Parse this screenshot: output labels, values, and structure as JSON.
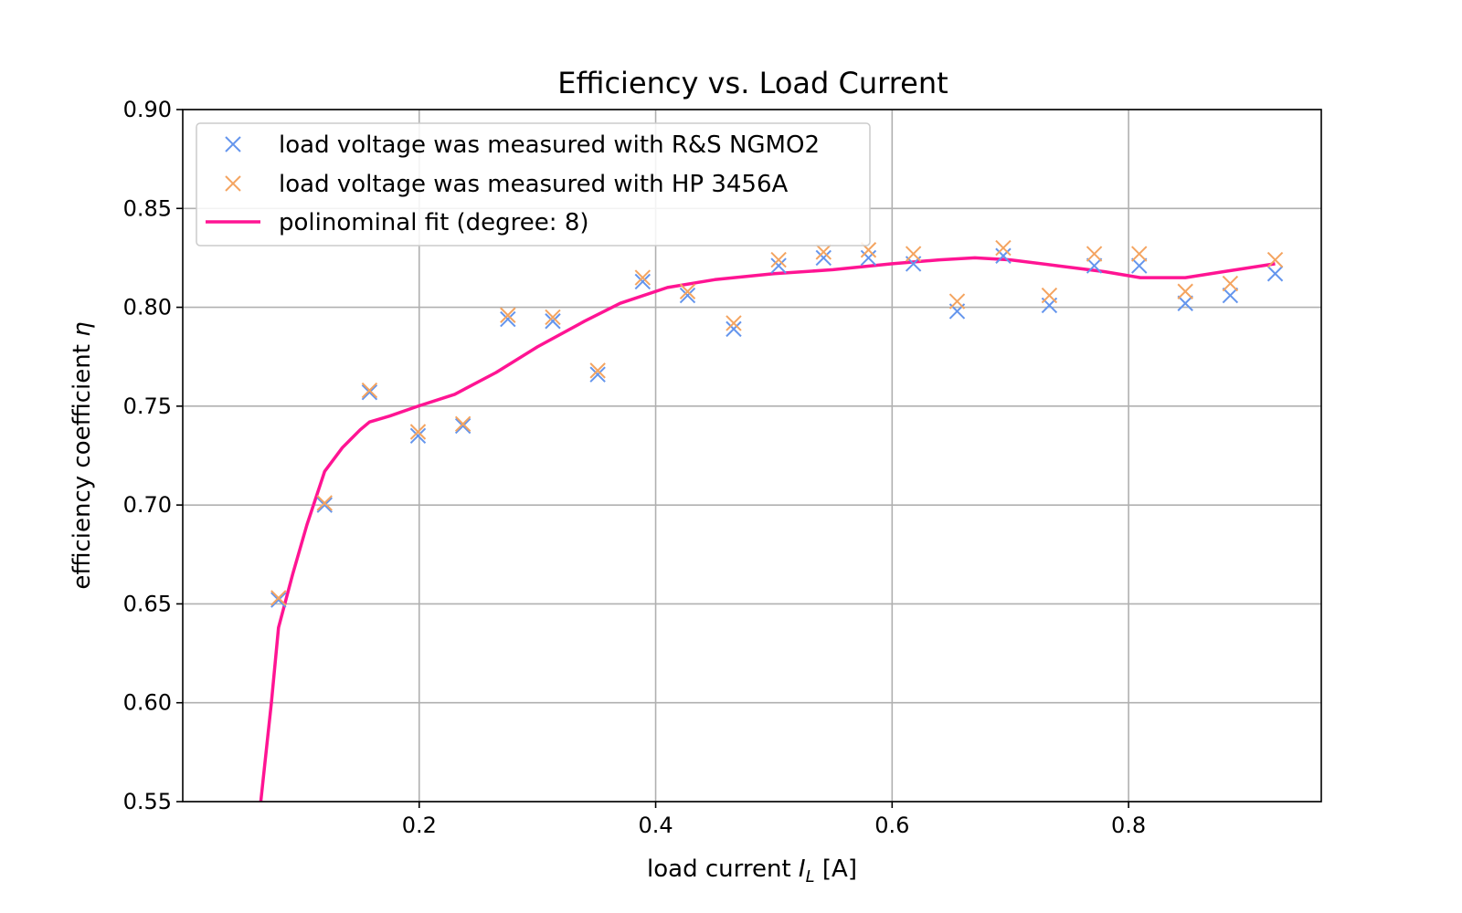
{
  "chart_data": {
    "type": "scatter",
    "title": "Efficiency vs. Load Current",
    "xlabel": {
      "prefix": "load current ",
      "var": "I",
      "sub": "L",
      "suffix": " [A]"
    },
    "ylabel": {
      "prefix": "efficiency coefficient ",
      "var": "η"
    },
    "xlim": [
      0.0,
      0.963
    ],
    "ylim": [
      0.55,
      0.9
    ],
    "xticks": [
      0.2,
      0.4,
      0.6,
      0.8
    ],
    "xtick_labels": [
      "0.2",
      "0.4",
      "0.6",
      "0.8"
    ],
    "yticks": [
      0.55,
      0.6,
      0.65,
      0.7,
      0.75,
      0.8,
      0.85,
      0.9
    ],
    "ytick_labels": [
      "0.55",
      "0.60",
      "0.65",
      "0.70",
      "0.75",
      "0.80",
      "0.85",
      "0.90"
    ],
    "grid": true,
    "legend_position": "top-left",
    "x": [
      0.081,
      0.12,
      0.158,
      0.199,
      0.237,
      0.275,
      0.313,
      0.351,
      0.389,
      0.427,
      0.466,
      0.504,
      0.542,
      0.58,
      0.618,
      0.655,
      0.694,
      0.733,
      0.771,
      0.809,
      0.848,
      0.886,
      0.924
    ],
    "series": [
      {
        "name": "load voltage was measured with R&S NGMO2",
        "kind": "scatter",
        "color": "#6495ed",
        "values": [
          0.652,
          0.7,
          0.757,
          0.735,
          0.74,
          0.794,
          0.793,
          0.766,
          0.813,
          0.806,
          0.789,
          0.821,
          0.825,
          0.825,
          0.822,
          0.798,
          0.826,
          0.801,
          0.821,
          0.821,
          0.802,
          0.806,
          0.817
        ]
      },
      {
        "name": "load voltage was measured with HP 3456A",
        "kind": "scatter",
        "color": "#f4a460",
        "values": [
          0.653,
          0.701,
          0.758,
          0.737,
          0.741,
          0.796,
          0.795,
          0.768,
          0.815,
          0.808,
          0.792,
          0.824,
          0.828,
          0.829,
          0.827,
          0.803,
          0.83,
          0.806,
          0.827,
          0.827,
          0.808,
          0.812,
          0.824
        ]
      },
      {
        "name": "polinominal fit (degree: 8)",
        "kind": "line",
        "color": "#ff1493",
        "x": [
          0.066,
          0.075,
          0.081,
          0.093,
          0.105,
          0.12,
          0.135,
          0.15,
          0.158,
          0.175,
          0.199,
          0.23,
          0.265,
          0.3,
          0.34,
          0.37,
          0.41,
          0.45,
          0.5,
          0.55,
          0.6,
          0.64,
          0.67,
          0.7,
          0.74,
          0.78,
          0.81,
          0.848,
          0.88,
          0.924
        ],
        "values": [
          0.55,
          0.6,
          0.638,
          0.665,
          0.69,
          0.717,
          0.729,
          0.738,
          0.742,
          0.745,
          0.75,
          0.756,
          0.767,
          0.78,
          0.793,
          0.802,
          0.81,
          0.814,
          0.817,
          0.819,
          0.822,
          0.824,
          0.825,
          0.824,
          0.821,
          0.818,
          0.815,
          0.815,
          0.818,
          0.822
        ]
      }
    ]
  }
}
